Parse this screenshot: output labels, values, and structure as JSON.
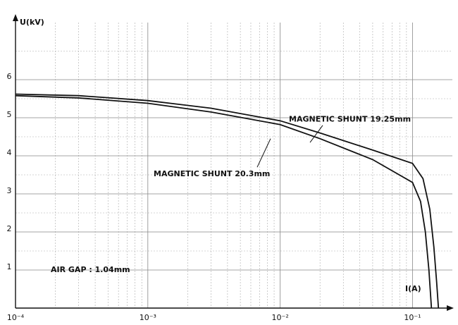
{
  "chart_data": {
    "type": "line",
    "log_x": true,
    "grid": true,
    "y_label": "U(kV)",
    "x_label": "I(A)",
    "annotations": [
      "MAGNETIC SHUNT 19.25mm",
      "MAGNETIC SHUNT 20.3mm",
      "AIR GAP : 1.04mm"
    ],
    "xlim": [
      0.0001,
      0.2
    ],
    "ylim": [
      0,
      7.5
    ],
    "xticks": [
      {
        "value": 0.0001,
        "label": "10⁻⁴"
      },
      {
        "value": 0.001,
        "label": "10⁻³"
      },
      {
        "value": 0.01,
        "label": "10⁻²"
      },
      {
        "value": 0.1,
        "label": "10⁻¹"
      }
    ],
    "yticks": [
      1,
      2,
      3,
      4,
      5,
      6
    ],
    "series": [
      {
        "name": "MAGNETIC SHUNT 19.25mm",
        "color": "#111111",
        "x": [
          0.0001,
          0.0003,
          0.001,
          0.003,
          0.01,
          0.02,
          0.05,
          0.1,
          0.12,
          0.135,
          0.145,
          0.152,
          0.157
        ],
        "values": [
          5.62,
          5.58,
          5.45,
          5.25,
          4.92,
          4.6,
          4.15,
          3.8,
          3.4,
          2.6,
          1.6,
          0.7,
          0
        ]
      },
      {
        "name": "MAGNETIC SHUNT 20.3mm",
        "color": "#111111",
        "x": [
          0.0001,
          0.0003,
          0.001,
          0.003,
          0.01,
          0.02,
          0.05,
          0.1,
          0.115,
          0.125,
          0.133,
          0.139
        ],
        "values": [
          5.58,
          5.52,
          5.38,
          5.15,
          4.82,
          4.45,
          3.9,
          3.3,
          2.8,
          2.0,
          1.0,
          0
        ]
      }
    ]
  }
}
